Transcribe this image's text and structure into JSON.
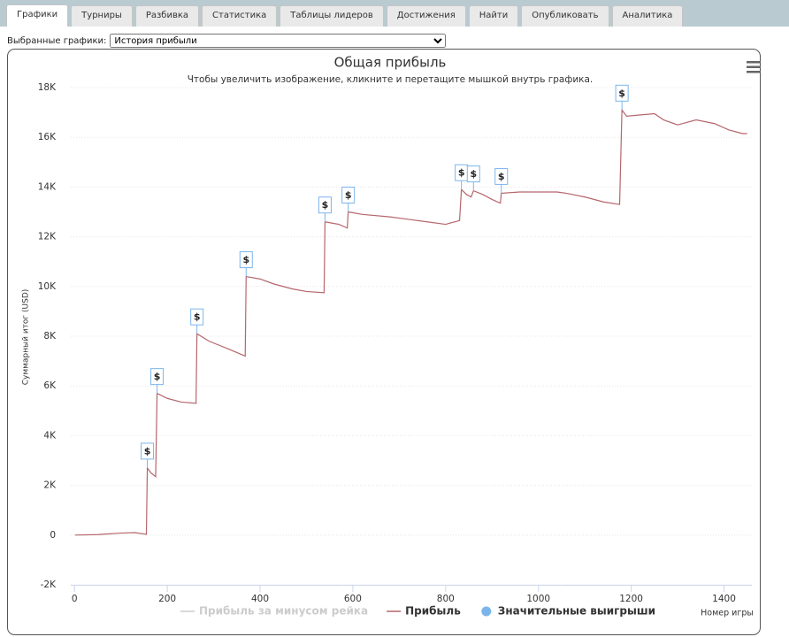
{
  "tabs": [
    "Графики",
    "Турниры",
    "Разбивка",
    "Статистика",
    "Таблицы лидеров",
    "Достижения",
    "Найти",
    "Опубликовать",
    "Аналитика"
  ],
  "active_tab": 0,
  "selector": {
    "label": "Выбранные графики:",
    "value": "История прибыли"
  },
  "chart_data": {
    "type": "line",
    "title": "Общая прибыль",
    "subtitle": "Чтобы увеличить изображение, кликните и перетащите мышкой внутрь графика.",
    "y_label": "Суммарный итог (USD)",
    "x_label": "Номер игры",
    "xlim": [
      -8,
      1460
    ],
    "xticks": [
      0,
      200,
      400,
      600,
      800,
      1000,
      1200,
      1400
    ],
    "ylim": [
      -2000,
      18000
    ],
    "yticks": [
      {
        "value": -2000,
        "label": "-2K"
      },
      0,
      {
        "value": 2000,
        "label": "2K"
      },
      {
        "value": 4000,
        "label": "4K"
      },
      {
        "value": 6000,
        "label": "6K"
      },
      {
        "value": 8000,
        "label": "8K"
      },
      {
        "value": 10000,
        "label": "10K"
      },
      {
        "value": 12000,
        "label": "12K"
      },
      {
        "value": 14000,
        "label": "14K"
      },
      {
        "value": 16000,
        "label": "16K"
      },
      {
        "value": 18000,
        "label": "18K"
      }
    ],
    "grid": true,
    "series": [
      {
        "name": "Прибыль за минусом рейка",
        "color": "#cccccc",
        "visible": false
      },
      {
        "name": "Прибыль",
        "color": "#b5666b",
        "visible": true,
        "x": [
          1,
          50,
          100,
          130,
          155,
          157,
          165,
          175,
          178,
          200,
          230,
          262,
          264,
          290,
          330,
          368,
          370,
          400,
          430,
          470,
          500,
          538,
          540,
          570,
          588,
          590,
          620,
          680,
          720,
          760,
          800,
          830,
          834,
          845,
          855,
          860,
          880,
          900,
          918,
          920,
          960,
          1000,
          1040,
          1060,
          1100,
          1140,
          1175,
          1180,
          1190,
          1220,
          1250,
          1270,
          1300,
          1340,
          1380,
          1410,
          1440,
          1450
        ],
        "values": [
          0,
          20,
          80,
          100,
          30,
          2700,
          2500,
          2350,
          5700,
          5500,
          5350,
          5300,
          8100,
          7800,
          7500,
          7200,
          10400,
          10300,
          10100,
          9900,
          9800,
          9750,
          12600,
          12500,
          12350,
          13000,
          12900,
          12800,
          12700,
          12600,
          12500,
          12650,
          13900,
          13700,
          13600,
          13850,
          13700,
          13500,
          13350,
          13750,
          13800,
          13800,
          13800,
          13750,
          13600,
          13400,
          13300,
          17100,
          16850,
          16900,
          16950,
          16700,
          16500,
          16700,
          16550,
          16300,
          16150,
          16150
        ]
      },
      {
        "name": "Значительные выигрыши",
        "color": "#7cb5ec",
        "visible": true,
        "type": "flags",
        "label": "$",
        "x": [
          157,
          178,
          264,
          370,
          540,
          590,
          834,
          860,
          920,
          1180
        ],
        "values": [
          2700,
          5700,
          8100,
          10400,
          12600,
          13000,
          13900,
          13850,
          13750,
          17100
        ]
      }
    ]
  }
}
